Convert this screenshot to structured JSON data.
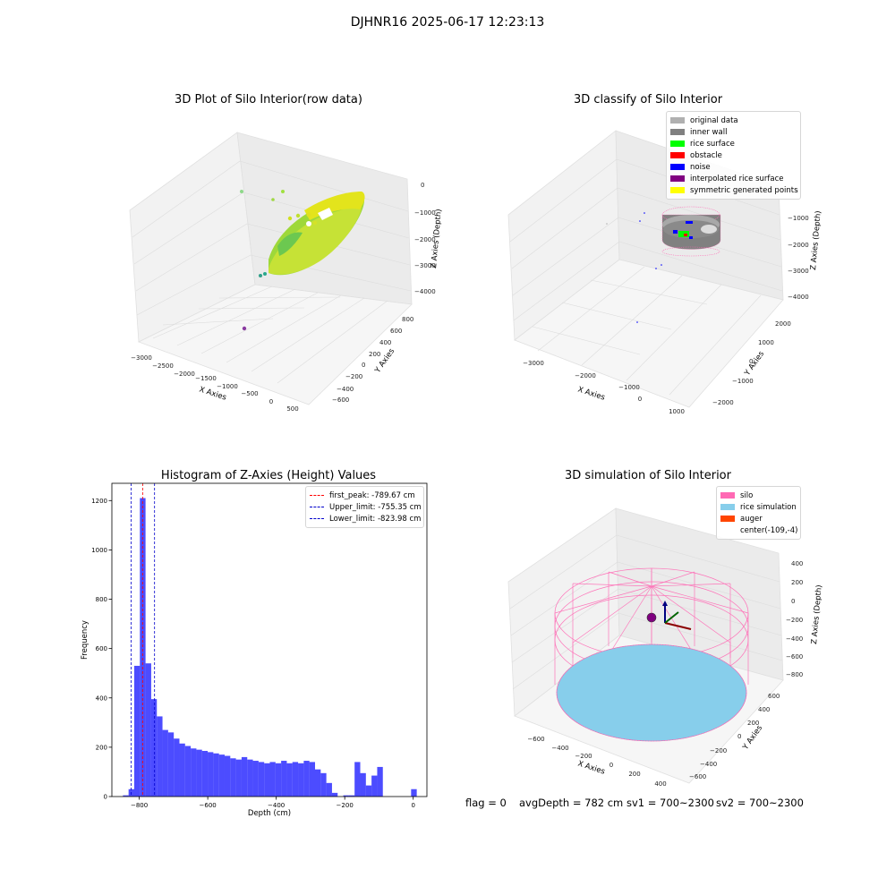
{
  "suptitle": "DJHNR16 2025-06-17 12:23:13",
  "panels": {
    "raw": {
      "title": "3D Plot of Silo Interior(row data)",
      "xlabel": "X Axies",
      "ylabel": "Y Axies",
      "zlabel": "Z Axies (Depth)",
      "xticks": [
        "−3000",
        "−2500",
        "−2000",
        "−1500",
        "−1000",
        "−500",
        "0",
        "500"
      ],
      "yticks": [
        "−600",
        "−400",
        "−200",
        "0",
        "200",
        "400",
        "600",
        "800"
      ],
      "zticks": [
        "0",
        "−1000",
        "−2000",
        "−3000",
        "−4000"
      ]
    },
    "classify": {
      "title": "3D classify of Silo Interior",
      "xlabel": "X Axies",
      "ylabel": "Y Axies",
      "zlabel": "Z Axies (Depth)",
      "xticks": [
        "−3000",
        "−2000",
        "−1000",
        "0",
        "1000"
      ],
      "yticks": [
        "−2000",
        "−1000",
        "0",
        "1000",
        "2000"
      ],
      "zticks": [
        "0",
        "−1000",
        "−2000",
        "−3000",
        "−4000"
      ],
      "legend": [
        {
          "label": "original data",
          "color": "#b0b0b0"
        },
        {
          "label": "inner wall",
          "color": "#808080"
        },
        {
          "label": "rice surface",
          "color": "#00ff00"
        },
        {
          "label": "obstacle",
          "color": "#ff0000"
        },
        {
          "label": "noise",
          "color": "#0000ff"
        },
        {
          "label": "interpolated rice surface",
          "color": "#800080"
        },
        {
          "label": "symmetric generated points",
          "color": "#ffff00"
        }
      ]
    },
    "simulation": {
      "title": "3D simulation of Silo Interior",
      "xlabel": "X Axies",
      "ylabel": "Y Axies",
      "zlabel": "Z Axies (Depth)",
      "xticks": [
        "−600",
        "−400",
        "−200",
        "0",
        "200",
        "400"
      ],
      "yticks": [
        "−600",
        "−400",
        "−200",
        "0",
        "200",
        "400",
        "600"
      ],
      "zticks": [
        "400",
        "200",
        "0",
        "−200",
        "−400",
        "−600",
        "−800"
      ],
      "legend": [
        {
          "label": "silo",
          "color": "#ff69b4"
        },
        {
          "label": "rice simulation",
          "color": "#87ceeb"
        },
        {
          "label": "auger",
          "color": "#ff4500"
        },
        {
          "label": "center(-109,-4)",
          "color": ""
        }
      ]
    }
  },
  "chart_data": {
    "type": "bar",
    "title": "Histogram of Z-Axies (Height) Values",
    "xlabel": "Depth (cm)",
    "ylabel": "Frequency",
    "xlim": [
      -880,
      40
    ],
    "ylim": [
      0,
      1270
    ],
    "xticks": [
      -800,
      -600,
      -400,
      -200,
      0
    ],
    "yticks": [
      0,
      200,
      400,
      600,
      800,
      1000,
      1200
    ],
    "bar_color": "#0000ff",
    "bar_width": 16.5,
    "bin_starts": [
      -847.7,
      -831.2,
      -814.7,
      -798.2,
      -781.7,
      -765.2,
      -748.7,
      -732.2,
      -715.7,
      -699.2,
      -682.7,
      -666.2,
      -649.7,
      -633.2,
      -616.7,
      -600.2,
      -583.7,
      -567.2,
      -550.7,
      -534.2,
      -517.7,
      -501.2,
      -484.7,
      -468.2,
      -451.7,
      -435.2,
      -418.7,
      -402.2,
      -385.7,
      -369.2,
      -352.7,
      -336.2,
      -319.7,
      -303.2,
      -286.7,
      -270.2,
      -253.7,
      -237.2,
      -220.7,
      -204.2,
      -187.7,
      -171.2,
      -154.7,
      -138.2,
      -121.7,
      -105.2,
      -88.7,
      -72.2,
      -55.7,
      -39.2,
      -22.7,
      -6.2
    ],
    "values": [
      5,
      30,
      530,
      1210,
      540,
      395,
      325,
      270,
      260,
      235,
      215,
      205,
      195,
      190,
      185,
      180,
      175,
      170,
      165,
      155,
      150,
      160,
      150,
      145,
      140,
      135,
      140,
      135,
      145,
      135,
      140,
      135,
      145,
      140,
      110,
      95,
      55,
      15,
      0,
      5,
      5,
      140,
      95,
      45,
      85,
      120,
      0,
      0,
      0,
      0,
      0,
      30
    ],
    "lines": [
      {
        "label": "first_peak: -789.67 cm",
        "x": -789.67,
        "color": "#ff0000"
      },
      {
        "label": "Upper_limit: -755.35 cm",
        "x": -755.35,
        "color": "#0000cc"
      },
      {
        "label": "Lower_limit: -823.98 cm",
        "x": -823.98,
        "color": "#0000cc"
      }
    ]
  },
  "footer": {
    "flag": "flag = 0",
    "avg_depth": "avgDepth = 782 cm",
    "sv1": "sv1 = 700~2300",
    "sv2": "sv2 = 700~2300"
  }
}
